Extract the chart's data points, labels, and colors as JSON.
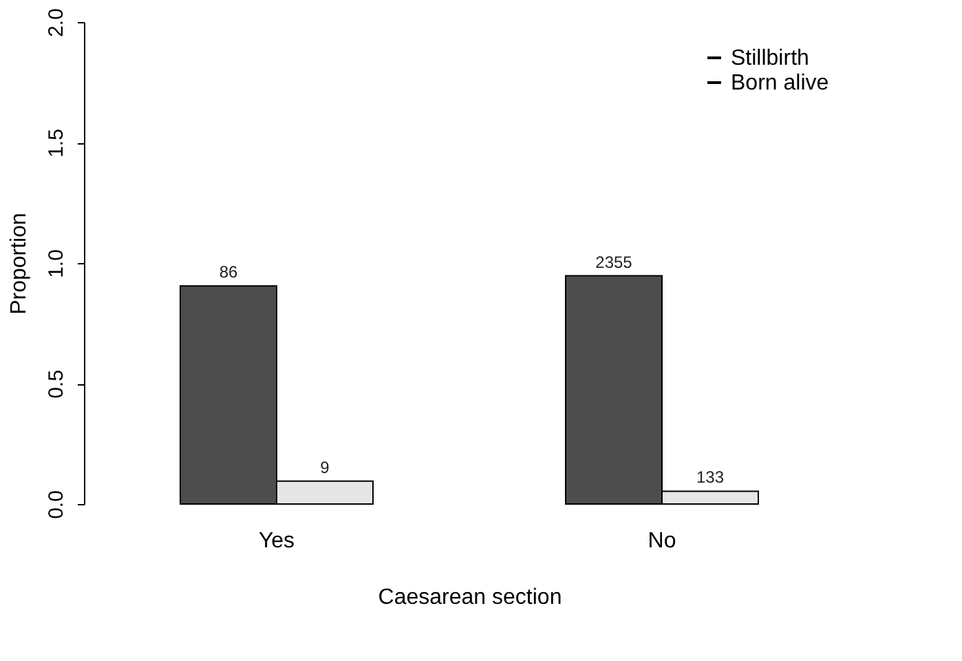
{
  "chart_data": {
    "type": "bar",
    "xlabel": "Caesarean section",
    "ylabel": "Proportion",
    "categories": [
      "Yes",
      "No"
    ],
    "series": [
      {
        "name": "Born alive",
        "color": "#4d4d4d",
        "values": [
          0.905,
          0.947
        ]
      },
      {
        "name": "Stillbirth",
        "color": "#e6e6e6",
        "values": [
          0.095,
          0.053
        ]
      }
    ],
    "annotations": [
      {
        "text": "86",
        "x": "Yes",
        "y": 0.905
      },
      {
        "text": "2355",
        "x": "No",
        "y": 0.947
      },
      {
        "text": "9",
        "x": "Yes",
        "y": 0.095
      },
      {
        "text": "133",
        "x": "No",
        "y": 0.053
      }
    ],
    "ylim": [
      0,
      2
    ],
    "yticks": [
      {
        "value": 0,
        "label": "0.0"
      },
      0.5,
      {
        "value": 1,
        "label": "1.0"
      },
      1.5,
      {
        "value": 2,
        "label": "2.0"
      }
    ],
    "grid": false,
    "legend": "top right"
  }
}
